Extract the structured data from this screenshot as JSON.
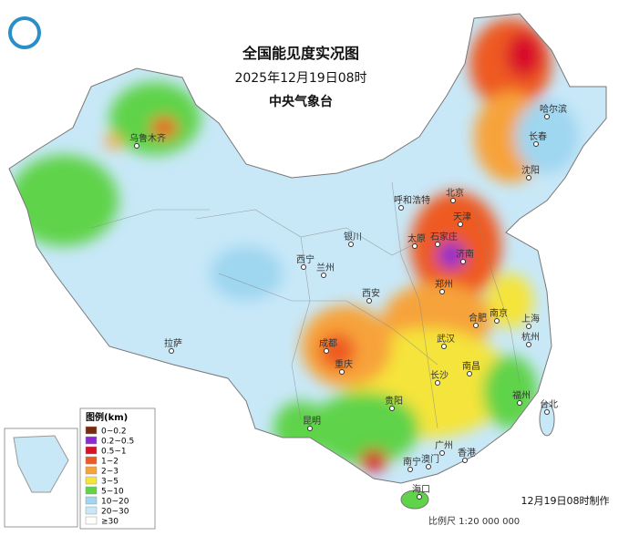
{
  "header": {
    "title": "全国能见度实况图",
    "time": "2025年12月19日08时",
    "agency": "中央气象台"
  },
  "cities": [
    "乌鲁木齐",
    "哈尔滨",
    "长春",
    "沈阳",
    "呼和浩特",
    "北京",
    "天津",
    "银川",
    "太原",
    "石家庄",
    "济南",
    "西宁",
    "兰州",
    "郑州",
    "西安",
    "合肥",
    "南京",
    "上海",
    "拉萨",
    "成都",
    "武汉",
    "杭州",
    "重庆",
    "长沙",
    "南昌",
    "福州",
    "台北",
    "贵阳",
    "昆明",
    "广州",
    "南宁",
    "澳门",
    "香港",
    "海口"
  ],
  "legend": {
    "title": "图例(km)",
    "items": [
      {
        "label": "0~0.2",
        "color": "#7a2a10"
      },
      {
        "label": "0.2~0.5",
        "color": "#8a2ad0"
      },
      {
        "label": "0.5~1",
        "color": "#d8102a"
      },
      {
        "label": "1~2",
        "color": "#ee5a24"
      },
      {
        "label": "2~3",
        "color": "#f7a33a"
      },
      {
        "label": "3~5",
        "color": "#f5e43a"
      },
      {
        "label": "5~10",
        "color": "#5fd34a"
      },
      {
        "label": "10~20",
        "color": "#9fd6f0"
      },
      {
        "label": "20~30",
        "color": "#c8e8f8"
      },
      {
        "label": "≥30",
        "color": "#ffffff"
      }
    ]
  },
  "footer": {
    "made": "12月19日08时制作",
    "scale": "比例尺 1:20 000 000"
  }
}
